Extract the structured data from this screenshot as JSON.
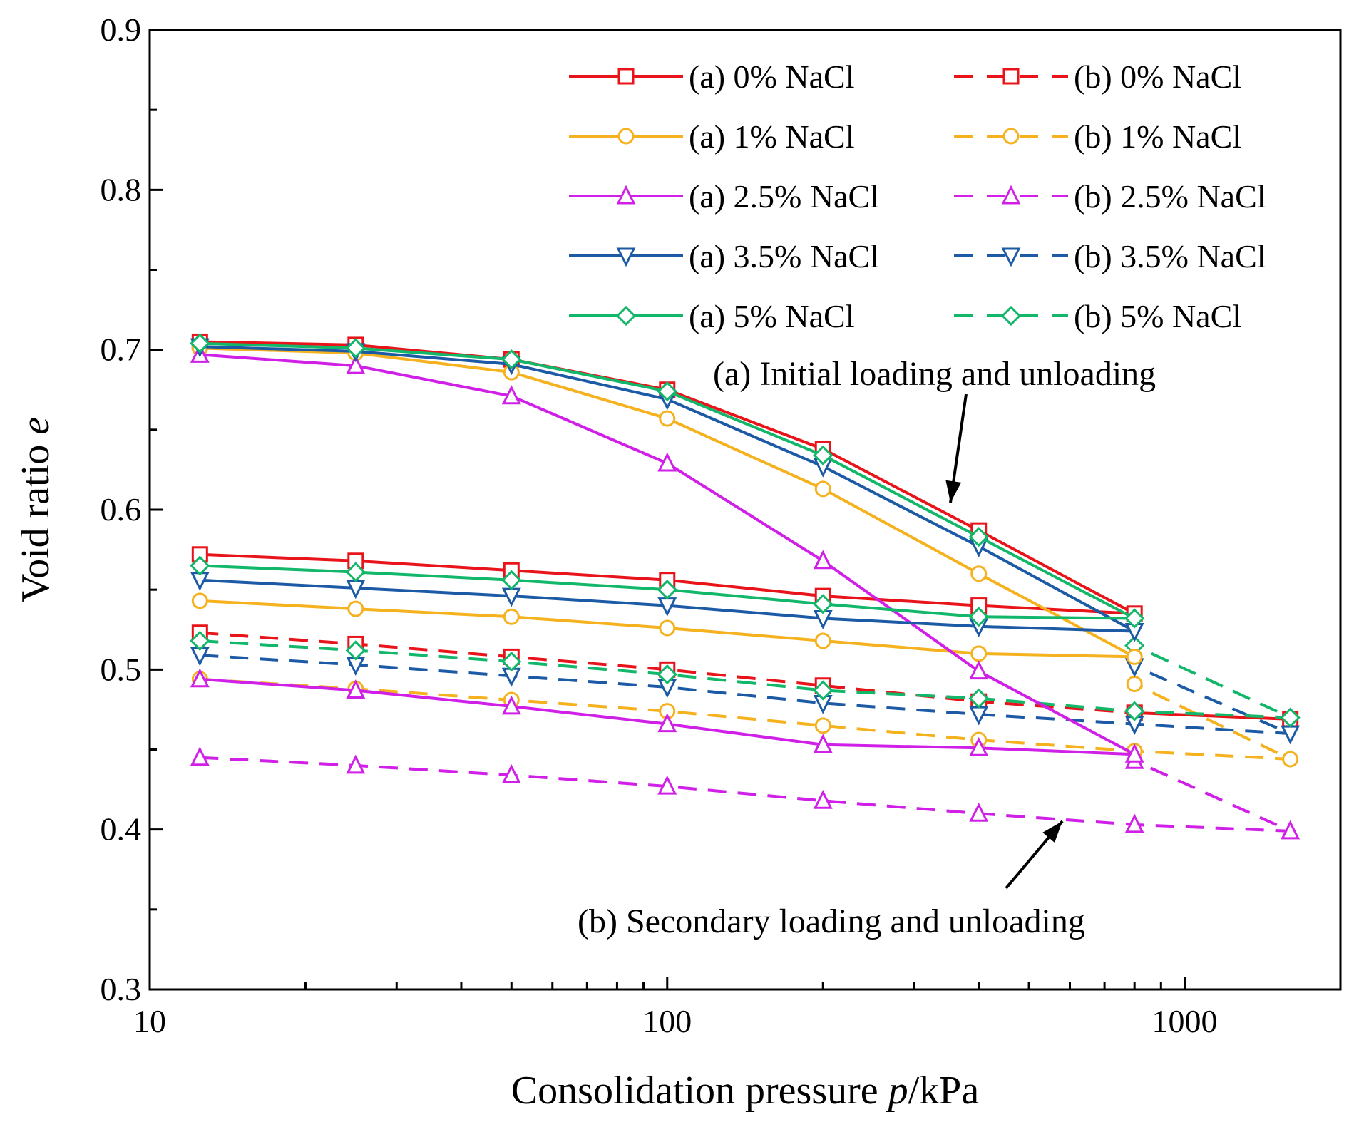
{
  "chart_data": {
    "type": "line",
    "xlabel_prefix": "Consolidation pressure ",
    "xlabel_var": "p",
    "xlabel_suffix": "/kPa",
    "ylabel_prefix": "Void ratio ",
    "ylabel_var": "e",
    "x_scale": "log",
    "xlim": [
      10,
      2000
    ],
    "ylim": [
      0.3,
      0.9
    ],
    "x_ticks": [
      10,
      100,
      1000
    ],
    "x_tick_labels": [
      "10",
      "100",
      "1000"
    ],
    "y_ticks": [
      0.3,
      0.4,
      0.5,
      0.6,
      0.7,
      0.8,
      0.9
    ],
    "y_tick_labels": [
      "0.3",
      "0.4",
      "0.5",
      "0.6",
      "0.7",
      "0.8",
      "0.9"
    ],
    "grid": false,
    "legend_position": "top-right",
    "series": [
      {
        "name": "(a) 0% NaCl",
        "color": "#e8141a",
        "marker": "square",
        "dash": false,
        "x": [
          12.5,
          25,
          50,
          100,
          200,
          400,
          800,
          400,
          200,
          100,
          50,
          25,
          12.5
        ],
        "y": [
          0.705,
          0.703,
          0.694,
          0.675,
          0.638,
          0.587,
          0.535,
          0.54,
          0.546,
          0.556,
          0.562,
          0.568,
          0.572
        ]
      },
      {
        "name": "(a) 1% NaCl",
        "color": "#f5b21e",
        "marker": "circle",
        "dash": false,
        "x": [
          12.5,
          25,
          50,
          100,
          200,
          400,
          800,
          400,
          200,
          100,
          50,
          25,
          12.5
        ],
        "y": [
          0.701,
          0.698,
          0.686,
          0.657,
          0.613,
          0.56,
          0.508,
          0.51,
          0.518,
          0.526,
          0.533,
          0.538,
          0.543
        ]
      },
      {
        "name": "(a) 2.5% NaCl",
        "color": "#d020e8",
        "marker": "triangle-up",
        "dash": false,
        "x": [
          12.5,
          25,
          50,
          100,
          200,
          400,
          800,
          400,
          200,
          100,
          50,
          25,
          12.5
        ],
        "y": [
          0.697,
          0.69,
          0.671,
          0.629,
          0.568,
          0.499,
          0.447,
          0.451,
          0.453,
          0.466,
          0.477,
          0.487,
          0.494
        ]
      },
      {
        "name": "(a) 3.5% NaCl",
        "color": "#1c5aa6",
        "marker": "triangle-down",
        "dash": false,
        "x": [
          12.5,
          25,
          50,
          100,
          200,
          400,
          800,
          400,
          200,
          100,
          50,
          25,
          12.5
        ],
        "y": [
          0.702,
          0.699,
          0.691,
          0.669,
          0.627,
          0.577,
          0.524,
          0.527,
          0.532,
          0.54,
          0.546,
          0.551,
          0.556
        ]
      },
      {
        "name": "(a) 5% NaCl",
        "color": "#12b76a",
        "marker": "diamond",
        "dash": false,
        "x": [
          12.5,
          25,
          50,
          100,
          200,
          400,
          800,
          400,
          200,
          100,
          50,
          25,
          12.5
        ],
        "y": [
          0.704,
          0.701,
          0.694,
          0.674,
          0.634,
          0.583,
          0.532,
          0.533,
          0.541,
          0.55,
          0.556,
          0.561,
          0.565
        ]
      },
      {
        "name": "(b) 0% NaCl",
        "color": "#e8141a",
        "marker": "square",
        "dash": true,
        "x": [
          12.5,
          25,
          50,
          100,
          200,
          400,
          800,
          1600,
          800
        ],
        "y": [
          0.523,
          0.516,
          0.508,
          0.5,
          0.49,
          0.48,
          0.473,
          0.469,
          0.473
        ]
      },
      {
        "name": "(b) 1% NaCl",
        "color": "#f5b21e",
        "marker": "circle",
        "dash": true,
        "x": [
          12.5,
          25,
          50,
          100,
          200,
          400,
          800,
          1600,
          800
        ],
        "y": [
          0.494,
          0.488,
          0.481,
          0.474,
          0.465,
          0.456,
          0.449,
          0.444,
          0.491
        ]
      },
      {
        "name": "(b) 2.5% NaCl",
        "color": "#d020e8",
        "marker": "triangle-up",
        "dash": true,
        "x": [
          12.5,
          25,
          50,
          100,
          200,
          400,
          800,
          1600,
          800
        ],
        "y": [
          0.445,
          0.44,
          0.434,
          0.427,
          0.418,
          0.41,
          0.403,
          0.399,
          0.443
        ]
      },
      {
        "name": "(b) 3.5% NaCl",
        "color": "#1c5aa6",
        "marker": "triangle-down",
        "dash": true,
        "x": [
          12.5,
          25,
          50,
          100,
          200,
          400,
          800,
          1600,
          800
        ],
        "y": [
          0.509,
          0.503,
          0.496,
          0.489,
          0.479,
          0.472,
          0.466,
          0.46,
          0.502
        ]
      },
      {
        "name": "(b) 5% NaCl",
        "color": "#12b76a",
        "marker": "diamond",
        "dash": true,
        "x": [
          12.5,
          25,
          50,
          100,
          200,
          400,
          800,
          1600,
          800
        ],
        "y": [
          0.518,
          0.512,
          0.505,
          0.497,
          0.487,
          0.482,
          0.474,
          0.47,
          0.515
        ]
      }
    ],
    "annotations": [
      {
        "text": "(a) Initial loading and unloading"
      },
      {
        "text": "(b)  Secondary loading and unloading"
      }
    ]
  }
}
